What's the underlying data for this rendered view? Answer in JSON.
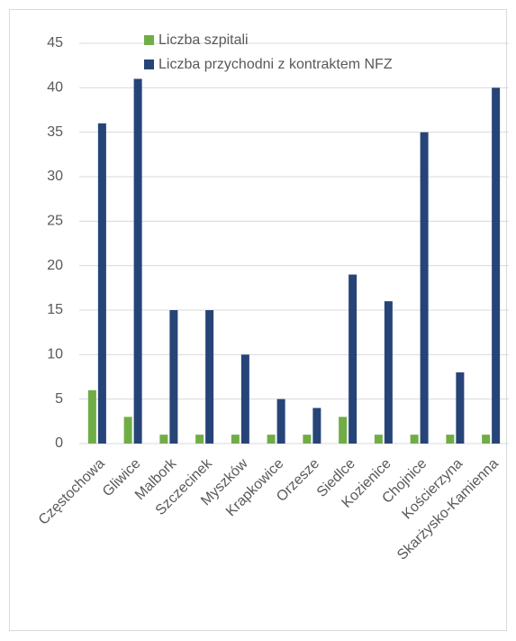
{
  "chart_data": {
    "type": "bar",
    "categories": [
      "Częstochowa",
      "Gliwice",
      "Malbork",
      "Szczecinek",
      "Myszków",
      "Krapkowice",
      "Orzesze",
      "Siedlce",
      "Kozienice",
      "Chojnice",
      "Kościerzyna",
      "Skarżysko-Kamienna"
    ],
    "series": [
      {
        "name": "Liczba szpitali",
        "color": "#70ad47",
        "values": [
          6,
          3,
          1,
          1,
          1,
          1,
          1,
          3,
          1,
          1,
          1,
          1
        ]
      },
      {
        "name": "Liczba przychodni z kontraktem NFZ",
        "color": "#264478",
        "values": [
          36,
          41,
          15,
          15,
          10,
          5,
          4,
          19,
          16,
          35,
          8,
          40
        ]
      }
    ],
    "ylim": [
      0,
      45
    ],
    "yticks": [
      0,
      5,
      10,
      15,
      20,
      25,
      30,
      35,
      40,
      45
    ],
    "grid": true,
    "legend": "top-left"
  }
}
